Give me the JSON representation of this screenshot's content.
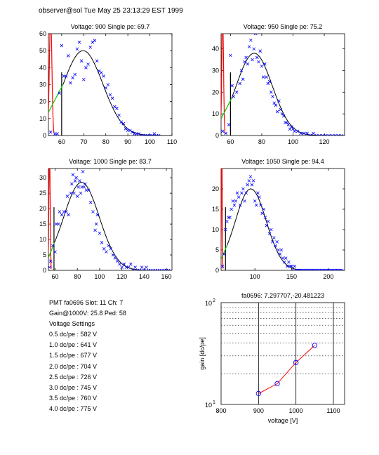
{
  "header": {
    "text": "observer@sol  Tue May 25 23:13:29 EST 1999"
  },
  "info": {
    "lines": [
      "PMT fa0696 Slot: 11 Ch: 7",
      "Gain@1000V: 25.8 Ped: 58",
      "Voltage Settings",
      "0.5 dc/pe : 582 V",
      "1.0 dc/pe : 641 V",
      "1.5 dc/pe : 677 V",
      "2.0 dc/pe : 704 V",
      "2.5 dc/pe : 726 V",
      "3.0 dc/pe : 745 V",
      "3.5 dc/pe : 760 V",
      "4.0 dc/pe : 775 V"
    ]
  },
  "colors": {
    "points": "#0000ff",
    "fit": "#000000",
    "pedestal": "#ff0000",
    "rise": "#00cc00",
    "gain_line": "#ff0000",
    "gain_markers": "#0000ff"
  },
  "chart_data": [
    {
      "type": "scatter",
      "title": "Voltage: 900 Single pe: 69.7",
      "xlim": [
        54,
        110
      ],
      "ylim": [
        0,
        60
      ],
      "xticks": [
        60,
        70,
        80,
        90,
        100,
        110
      ],
      "yticks": [
        0,
        10,
        20,
        30,
        40,
        50,
        60
      ],
      "mean": 69.7,
      "sigma": 9.0,
      "amplitude": 50,
      "pedestal": 55,
      "cut": 60,
      "fit_start": 60.7,
      "points": [
        [
          55,
          2
        ],
        [
          57,
          1
        ],
        [
          58,
          1
        ],
        [
          59,
          25
        ],
        [
          60,
          53
        ],
        [
          61,
          35
        ],
        [
          62,
          35
        ],
        [
          63,
          47
        ],
        [
          64,
          31
        ],
        [
          65,
          34
        ],
        [
          66,
          36
        ],
        [
          67,
          51
        ],
        [
          68,
          55
        ],
        [
          69,
          44
        ],
        [
          70,
          33
        ],
        [
          71,
          40
        ],
        [
          72,
          42
        ],
        [
          73,
          52
        ],
        [
          74,
          55
        ],
        [
          75,
          56
        ],
        [
          76,
          44
        ],
        [
          77,
          38
        ],
        [
          78,
          37
        ],
        [
          79,
          35
        ],
        [
          80,
          28
        ],
        [
          81,
          30
        ],
        [
          82,
          24
        ],
        [
          83,
          22
        ],
        [
          84,
          17
        ],
        [
          85,
          16
        ],
        [
          86,
          12
        ],
        [
          87,
          8
        ],
        [
          88,
          7
        ],
        [
          89,
          4
        ],
        [
          90,
          3
        ],
        [
          91,
          3
        ],
        [
          92,
          2
        ],
        [
          93,
          1
        ],
        [
          94,
          1
        ],
        [
          95,
          1
        ],
        [
          96,
          0
        ],
        [
          97,
          0
        ],
        [
          98,
          0
        ],
        [
          99,
          0
        ],
        [
          100,
          0
        ],
        [
          101,
          0
        ],
        [
          102,
          1
        ],
        [
          103,
          0
        ],
        [
          104,
          0
        ]
      ]
    },
    {
      "type": "scatter",
      "title": "Voltage: 950 Single pe: 75.2",
      "xlim": [
        54,
        133
      ],
      "ylim": [
        0,
        47
      ],
      "xticks": [
        60,
        80,
        100,
        120
      ],
      "yticks": [
        0,
        10,
        20,
        30,
        40
      ],
      "mean": 75.2,
      "sigma": 11.5,
      "amplitude": 38,
      "pedestal": 55,
      "cut": 60,
      "fit_start": 60.7,
      "points": [
        [
          55,
          2
        ],
        [
          57,
          1
        ],
        [
          59,
          5
        ],
        [
          60,
          37
        ],
        [
          61,
          23
        ],
        [
          62,
          18
        ],
        [
          64,
          20
        ],
        [
          66,
          24
        ],
        [
          67,
          30
        ],
        [
          68,
          26
        ],
        [
          69,
          34
        ],
        [
          70,
          36
        ],
        [
          71,
          33
        ],
        [
          72,
          41
        ],
        [
          73,
          44
        ],
        [
          74,
          35
        ],
        [
          75,
          40
        ],
        [
          76,
          47
        ],
        [
          77,
          36
        ],
        [
          78,
          34
        ],
        [
          79,
          39
        ],
        [
          80,
          32
        ],
        [
          81,
          27
        ],
        [
          82,
          33
        ],
        [
          83,
          27
        ],
        [
          84,
          24
        ],
        [
          85,
          25
        ],
        [
          86,
          20
        ],
        [
          87,
          18
        ],
        [
          88,
          15
        ],
        [
          89,
          14
        ],
        [
          90,
          11
        ],
        [
          91,
          16
        ],
        [
          92,
          12
        ],
        [
          93,
          10
        ],
        [
          94,
          9
        ],
        [
          95,
          6
        ],
        [
          96,
          6
        ],
        [
          97,
          5
        ],
        [
          98,
          3
        ],
        [
          99,
          4
        ],
        [
          100,
          3
        ],
        [
          101,
          2
        ],
        [
          103,
          2
        ],
        [
          105,
          1
        ],
        [
          107,
          1
        ],
        [
          109,
          1
        ],
        [
          111,
          0
        ],
        [
          113,
          1
        ],
        [
          115,
          0
        ],
        [
          117,
          0
        ],
        [
          119,
          0
        ],
        [
          121,
          0
        ],
        [
          123,
          0
        ],
        [
          125,
          0
        ],
        [
          127,
          0
        ],
        [
          129,
          0
        ],
        [
          131,
          0
        ]
      ]
    },
    {
      "type": "scatter",
      "title": "Voltage: 1000 Single pe: 83.7",
      "xlim": [
        54,
        165
      ],
      "ylim": [
        0,
        33
      ],
      "xticks": [
        60,
        80,
        100,
        120,
        140,
        160
      ],
      "yticks": [
        0,
        5,
        10,
        15,
        20,
        25,
        30
      ],
      "mean": 83.7,
      "sigma": 16.0,
      "amplitude": 28.5,
      "pedestal": 55,
      "cut": 59,
      "fit_start": 59.5,
      "points": [
        [
          55,
          1
        ],
        [
          56,
          3
        ],
        [
          58,
          8
        ],
        [
          60,
          6
        ],
        [
          61,
          15
        ],
        [
          63,
          15
        ],
        [
          64,
          19
        ],
        [
          66,
          18
        ],
        [
          68,
          19
        ],
        [
          70,
          19
        ],
        [
          71,
          24
        ],
        [
          72,
          18
        ],
        [
          74,
          25
        ],
        [
          75,
          28
        ],
        [
          76,
          31
        ],
        [
          77,
          25
        ],
        [
          78,
          29
        ],
        [
          79,
          30
        ],
        [
          80,
          24
        ],
        [
          81,
          27
        ],
        [
          82,
          29
        ],
        [
          83,
          25
        ],
        [
          84,
          27
        ],
        [
          85,
          32
        ],
        [
          86,
          27
        ],
        [
          87,
          28
        ],
        [
          88,
          26
        ],
        [
          90,
          26
        ],
        [
          92,
          22
        ],
        [
          94,
          19
        ],
        [
          96,
          13
        ],
        [
          97,
          15
        ],
        [
          98,
          18
        ],
        [
          100,
          12
        ],
        [
          102,
          9
        ],
        [
          104,
          7
        ],
        [
          106,
          6
        ],
        [
          108,
          8
        ],
        [
          110,
          7
        ],
        [
          112,
          5
        ],
        [
          114,
          4
        ],
        [
          116,
          3
        ],
        [
          118,
          2
        ],
        [
          120,
          1
        ],
        [
          122,
          2
        ],
        [
          124,
          1
        ],
        [
          126,
          1
        ],
        [
          128,
          2
        ],
        [
          130,
          0
        ],
        [
          132,
          1
        ],
        [
          134,
          0
        ],
        [
          136,
          0
        ],
        [
          138,
          1
        ],
        [
          140,
          0
        ],
        [
          142,
          1
        ],
        [
          144,
          0
        ],
        [
          146,
          0
        ],
        [
          148,
          0
        ],
        [
          150,
          0
        ],
        [
          152,
          0
        ],
        [
          154,
          0
        ],
        [
          156,
          0
        ],
        [
          158,
          0
        ],
        [
          160,
          0
        ],
        [
          162,
          0
        ]
      ]
    },
    {
      "type": "scatter",
      "title": "Voltage: 1050 Single pe: 94.4",
      "xlim": [
        54,
        222
      ],
      "ylim": [
        0,
        25
      ],
      "xticks": [
        100,
        150,
        200
      ],
      "yticks": [
        0,
        5,
        10,
        15,
        20
      ],
      "mean": 94.4,
      "sigma": 21.0,
      "amplitude": 20,
      "pedestal": 55,
      "cut": 60,
      "fit_start": 62,
      "points": [
        [
          56,
          1
        ],
        [
          58,
          4
        ],
        [
          60,
          10
        ],
        [
          62,
          12
        ],
        [
          64,
          13
        ],
        [
          66,
          13
        ],
        [
          68,
          15
        ],
        [
          70,
          17
        ],
        [
          72,
          16
        ],
        [
          74,
          17
        ],
        [
          76,
          19
        ],
        [
          78,
          18
        ],
        [
          80,
          16
        ],
        [
          82,
          19
        ],
        [
          84,
          20
        ],
        [
          86,
          17
        ],
        [
          88,
          19
        ],
        [
          90,
          21
        ],
        [
          92,
          22
        ],
        [
          94,
          23
        ],
        [
          96,
          21
        ],
        [
          98,
          22
        ],
        [
          100,
          17
        ],
        [
          102,
          16
        ],
        [
          104,
          19
        ],
        [
          106,
          18
        ],
        [
          108,
          16
        ],
        [
          110,
          14
        ],
        [
          112,
          15
        ],
        [
          114,
          13
        ],
        [
          116,
          11
        ],
        [
          118,
          12
        ],
        [
          120,
          9
        ],
        [
          122,
          10
        ],
        [
          124,
          7
        ],
        [
          126,
          8
        ],
        [
          128,
          6
        ],
        [
          130,
          7
        ],
        [
          132,
          5
        ],
        [
          134,
          4
        ],
        [
          136,
          5
        ],
        [
          138,
          3
        ],
        [
          140,
          2
        ],
        [
          142,
          3
        ],
        [
          144,
          1
        ],
        [
          146,
          2
        ],
        [
          148,
          1
        ],
        [
          150,
          1
        ],
        [
          152,
          0
        ],
        [
          154,
          1
        ],
        [
          156,
          0
        ],
        [
          158,
          0
        ],
        [
          160,
          0
        ],
        [
          162,
          0
        ],
        [
          164,
          0
        ],
        [
          166,
          0
        ],
        [
          168,
          0
        ],
        [
          170,
          0
        ],
        [
          172,
          0
        ],
        [
          174,
          0
        ],
        [
          176,
          0
        ],
        [
          178,
          0
        ],
        [
          180,
          0
        ],
        [
          182,
          0
        ],
        [
          184,
          0
        ],
        [
          186,
          0
        ],
        [
          188,
          0
        ],
        [
          190,
          0
        ],
        [
          192,
          0
        ],
        [
          194,
          0
        ],
        [
          196,
          0
        ],
        [
          198,
          0
        ],
        [
          200,
          0
        ],
        [
          202,
          0
        ],
        [
          204,
          0
        ],
        [
          206,
          0
        ],
        [
          208,
          0
        ],
        [
          210,
          0
        ],
        [
          212,
          0
        ],
        [
          214,
          0
        ],
        [
          216,
          0
        ],
        [
          218,
          0
        ]
      ]
    },
    {
      "type": "line",
      "title": "fa0696: 7.297707,-20.481223",
      "xlabel": "voltage [V]",
      "ylabel": "gain [dc/pe]",
      "xlim": [
        800,
        1130
      ],
      "ylim": [
        10,
        100
      ],
      "yscale": "log",
      "xticks": [
        800,
        900,
        1000,
        1100
      ],
      "grid": "vertical lines at 900/1000/1100, dotted horizontal at log minors",
      "x": [
        900,
        950,
        1000,
        1050
      ],
      "y": [
        12.8,
        16.0,
        25.8,
        38.0
      ]
    }
  ]
}
